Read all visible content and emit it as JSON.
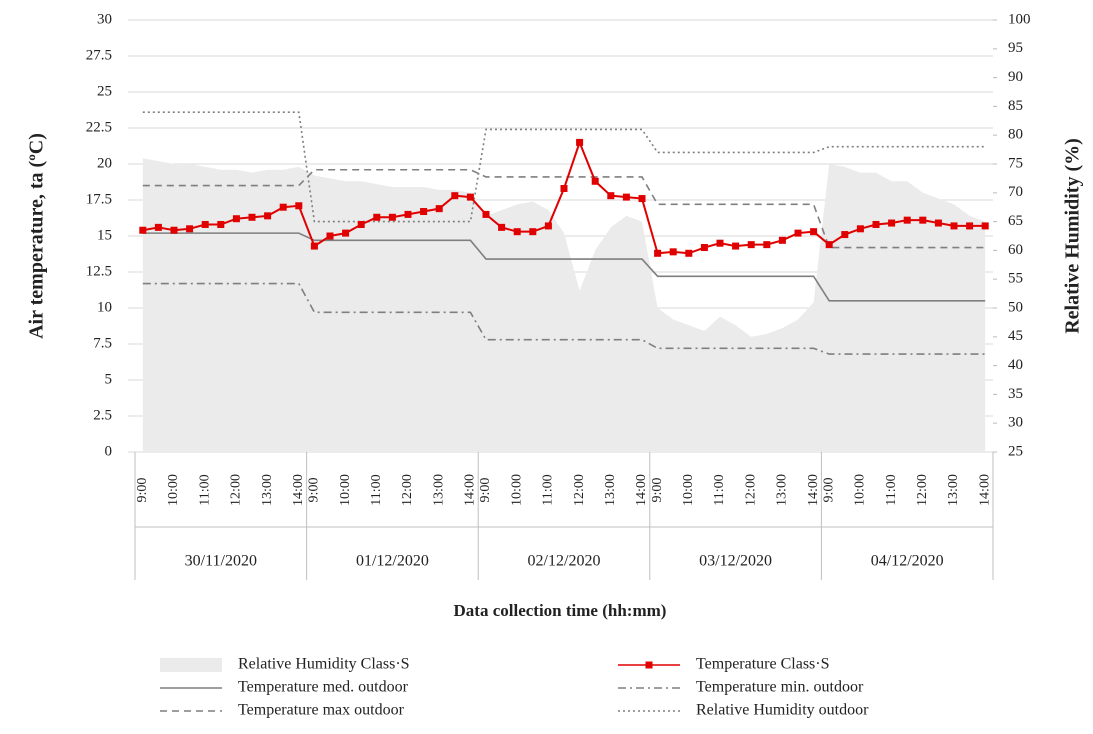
{
  "chart_data": {
    "type": "line",
    "y_title": "Air temperature, ta (ºC)",
    "y2_title": "Relative Humidity (%)",
    "x_title": "Data collection time (hh:mm)",
    "categories": [
      "9:00",
      null,
      "10:00",
      null,
      "11:00",
      null,
      "12:00",
      null,
      "13:00",
      null,
      "14:00",
      "9:00",
      null,
      "10:00",
      null,
      "11:00",
      null,
      "12:00",
      null,
      "13:00",
      null,
      "14:00",
      "9:00",
      null,
      "10:00",
      null,
      "11:00",
      null,
      "12:00",
      null,
      "13:00",
      null,
      "14:00",
      "9:00",
      null,
      "10:00",
      null,
      "11:00",
      null,
      "12:00",
      null,
      "13:00",
      null,
      "14:00",
      "9:00",
      null,
      "10:00",
      null,
      "11:00",
      null,
      "12:00",
      null,
      "13:00",
      null,
      "14:00"
    ],
    "groups": [
      "30/11/2020",
      "01/12/2020",
      "02/12/2020",
      "03/12/2020",
      "04/12/2020"
    ],
    "ylim": [
      0,
      30
    ],
    "yticks": [
      0,
      2.5,
      5,
      7.5,
      10,
      12.5,
      15,
      17.5,
      20,
      22.5,
      25,
      27.5,
      30
    ],
    "y2lim": [
      25,
      100
    ],
    "y2ticks": [
      25,
      30,
      35,
      40,
      45,
      50,
      55,
      60,
      65,
      70,
      75,
      80,
      85,
      90,
      95,
      100
    ],
    "grid": true,
    "legend": "bottom",
    "series": [
      {
        "name": "Relative Humidity Class·S",
        "color": "#ebebeb",
        "style": "area",
        "axis": "y2",
        "values": [
          76,
          75.5,
          75,
          75,
          74.5,
          74,
          74,
          73.5,
          74,
          74,
          74.5,
          73,
          72.5,
          72,
          72,
          71.5,
          71,
          71,
          71,
          70.5,
          70.5,
          70,
          66,
          67,
          68,
          68.5,
          67,
          63,
          53,
          60,
          64,
          66,
          65,
          50,
          48,
          47,
          46,
          48.5,
          47,
          45,
          45.5,
          46.5,
          48,
          51,
          75,
          74.5,
          73.5,
          73.5,
          72,
          72,
          70,
          69,
          68,
          66,
          65
        ]
      },
      {
        "name": "Temperature Class·S",
        "color": "#e00000",
        "style": "solid-markers",
        "values": [
          15.4,
          15.6,
          15.4,
          15.5,
          15.8,
          15.8,
          16.2,
          16.3,
          16.4,
          17.0,
          17.1,
          14.3,
          15.0,
          15.2,
          15.8,
          16.3,
          16.3,
          16.5,
          16.7,
          16.9,
          17.8,
          17.7,
          16.5,
          15.6,
          15.3,
          15.3,
          15.7,
          18.3,
          21.5,
          18.8,
          17.8,
          17.7,
          17.6,
          13.8,
          13.9,
          13.8,
          14.2,
          14.5,
          14.3,
          14.4,
          14.4,
          14.7,
          15.2,
          15.3,
          14.4,
          15.1,
          15.5,
          15.8,
          15.9,
          16.1,
          16.1,
          15.9,
          15.7,
          15.7,
          15.7
        ]
      },
      {
        "name": "Temperature med. outdoor",
        "color": "#7f7f7f",
        "style": "solid",
        "values": [
          15.2,
          15.2,
          15.2,
          15.2,
          15.2,
          15.2,
          15.2,
          15.2,
          15.2,
          15.2,
          15.2,
          14.7,
          14.7,
          14.7,
          14.7,
          14.7,
          14.7,
          14.7,
          14.7,
          14.7,
          14.7,
          14.7,
          13.4,
          13.4,
          13.4,
          13.4,
          13.4,
          13.4,
          13.4,
          13.4,
          13.4,
          13.4,
          13.4,
          12.2,
          12.2,
          12.2,
          12.2,
          12.2,
          12.2,
          12.2,
          12.2,
          12.2,
          12.2,
          12.2,
          10.5,
          10.5,
          10.5,
          10.5,
          10.5,
          10.5,
          10.5,
          10.5,
          10.5,
          10.5,
          10.5
        ]
      },
      {
        "name": "Temperature min. outdoor",
        "color": "#7f7f7f",
        "style": "dashdot",
        "values": [
          11.7,
          11.7,
          11.7,
          11.7,
          11.7,
          11.7,
          11.7,
          11.7,
          11.7,
          11.7,
          11.7,
          9.7,
          9.7,
          9.7,
          9.7,
          9.7,
          9.7,
          9.7,
          9.7,
          9.7,
          9.7,
          9.7,
          7.8,
          7.8,
          7.8,
          7.8,
          7.8,
          7.8,
          7.8,
          7.8,
          7.8,
          7.8,
          7.8,
          7.2,
          7.2,
          7.2,
          7.2,
          7.2,
          7.2,
          7.2,
          7.2,
          7.2,
          7.2,
          7.2,
          6.8,
          6.8,
          6.8,
          6.8,
          6.8,
          6.8,
          6.8,
          6.8,
          6.8,
          6.8,
          6.8
        ]
      },
      {
        "name": "Temperature max outdoor",
        "color": "#7f7f7f",
        "style": "dashed",
        "values": [
          18.5,
          18.5,
          18.5,
          18.5,
          18.5,
          18.5,
          18.5,
          18.5,
          18.5,
          18.5,
          18.5,
          19.6,
          19.6,
          19.6,
          19.6,
          19.6,
          19.6,
          19.6,
          19.6,
          19.6,
          19.6,
          19.6,
          19.1,
          19.1,
          19.1,
          19.1,
          19.1,
          19.1,
          19.1,
          19.1,
          19.1,
          19.1,
          19.1,
          17.2,
          17.2,
          17.2,
          17.2,
          17.2,
          17.2,
          17.2,
          17.2,
          17.2,
          17.2,
          17.2,
          14.2,
          14.2,
          14.2,
          14.2,
          14.2,
          14.2,
          14.2,
          14.2,
          14.2,
          14.2,
          14.2
        ]
      },
      {
        "name": "Relative Humidity outdoor",
        "color": "#7f7f7f",
        "style": "dotted",
        "axis": "y2",
        "values": [
          84,
          84,
          84,
          84,
          84,
          84,
          84,
          84,
          84,
          84,
          84,
          65,
          65,
          65,
          65,
          65,
          65,
          65,
          65,
          65,
          65,
          65,
          81,
          81,
          81,
          81,
          81,
          81,
          81,
          81,
          81,
          81,
          81,
          77,
          77,
          77,
          77,
          77,
          77,
          77,
          77,
          77,
          77,
          77,
          78,
          78,
          78,
          78,
          78,
          78,
          78,
          78,
          78,
          78,
          78
        ]
      }
    ]
  }
}
